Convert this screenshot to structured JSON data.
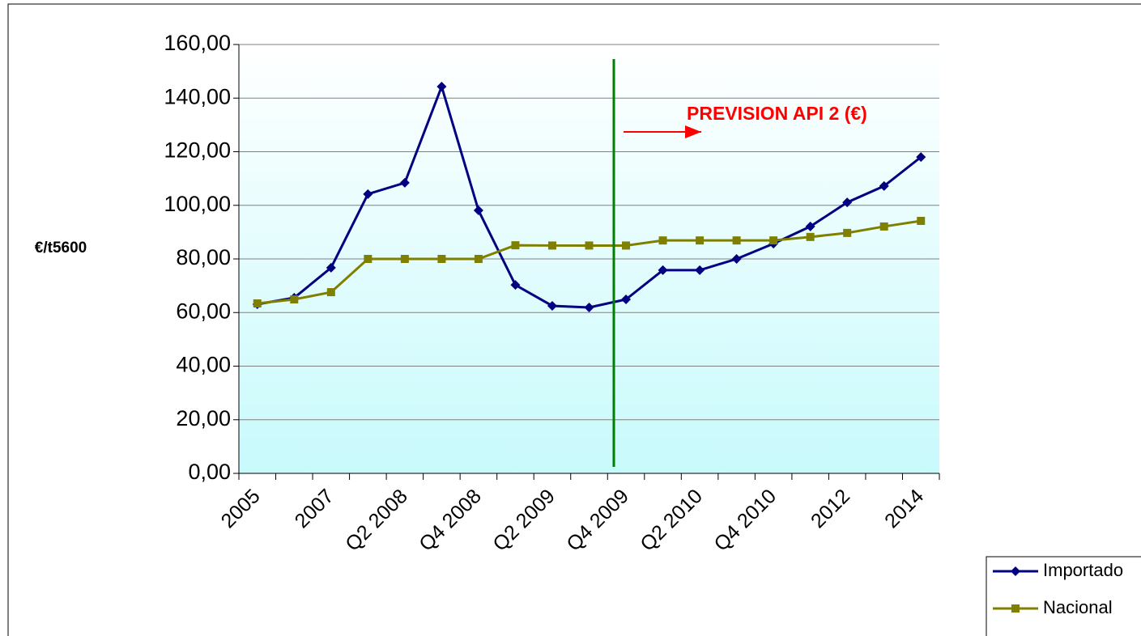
{
  "chart_data": {
    "type": "line",
    "y_label": "€/t5600",
    "annotation": "PREVISION API 2 (€)",
    "categories": [
      "2005",
      null,
      "2007",
      null,
      "Q2 2008",
      null,
      "Q4 2008",
      null,
      "Q2 2009",
      null,
      "Q4 2009",
      null,
      "Q2 2010",
      null,
      "Q4 2010",
      null,
      "2012",
      null,
      "2014"
    ],
    "series": [
      {
        "name": "Importado",
        "color": "#000080",
        "marker": "diamond",
        "values": [
          63.1,
          65.5,
          76.7,
          104.2,
          108.4,
          144.3,
          98.1,
          70.3,
          62.5,
          61.9,
          64.9,
          75.8,
          75.8,
          80.0,
          85.7,
          92.1,
          101.1,
          107.2,
          118.0
        ]
      },
      {
        "name": "Nacional",
        "color": "#808000",
        "marker": "square",
        "values": [
          63.4,
          64.9,
          67.6,
          80.0,
          80.0,
          80.0,
          80.0,
          85.1,
          85.0,
          85.0,
          85.0,
          86.9,
          86.9,
          86.9,
          86.9,
          88.2,
          89.7,
          92.1,
          94.2
        ]
      }
    ],
    "ylim": [
      0,
      160
    ],
    "yticks": [
      {
        "value": 0,
        "label": "0,00"
      },
      {
        "value": 20,
        "label": "20,00"
      },
      {
        "value": 40,
        "label": "40,00"
      },
      {
        "value": 60,
        "label": "60,00"
      },
      {
        "value": 80,
        "label": "80,00"
      },
      {
        "value": 100,
        "label": "100,00"
      },
      {
        "value": 120,
        "label": "120,00"
      },
      {
        "value": 140,
        "label": "140,00"
      },
      {
        "value": 160,
        "label": "160,00"
      }
    ],
    "grid": true
  }
}
